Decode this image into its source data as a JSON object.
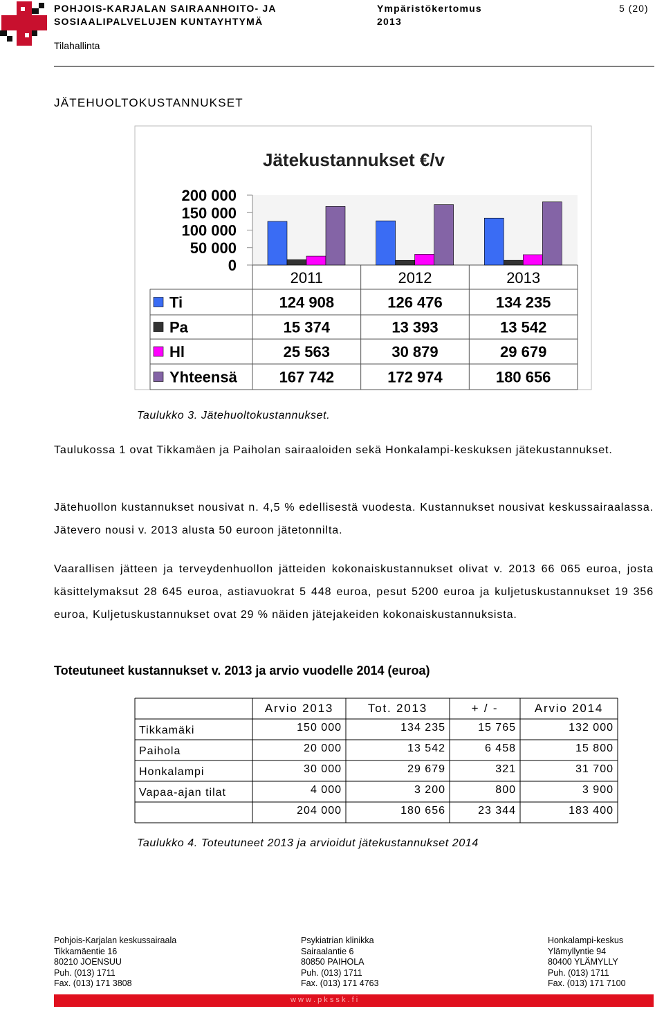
{
  "header": {
    "org": [
      "POHJOIS-KARJALAN SAIRAANHOITO- JA",
      "SOSIAALIPALVELUJEN KUNTAYHTYMÄ"
    ],
    "doc": [
      "Ympäristökertomus",
      "2013"
    ],
    "page": "5 (20)",
    "unit": "Tilahallinta"
  },
  "heading": "JÄTEHUOLTOKUSTANNUKSET",
  "chart_data": {
    "type": "bar",
    "title": "Jätekustannukset €/v",
    "categories": [
      "2011",
      "2012",
      "2013"
    ],
    "series": [
      {
        "name": "Ti",
        "color": "#3a6cf4",
        "values": [
          124908,
          126476,
          134235
        ],
        "value_labels": [
          "124 908",
          "126 476",
          "134 235"
        ]
      },
      {
        "name": "Pa",
        "color": "#333333",
        "values": [
          15374,
          13393,
          13542
        ],
        "value_labels": [
          "15 374",
          "13 393",
          "13 542"
        ]
      },
      {
        "name": "Hl",
        "color": "#ff00ff",
        "values": [
          25563,
          30879,
          29679
        ],
        "value_labels": [
          "25 563",
          "30 879",
          "29 679"
        ]
      },
      {
        "name": "Yhteensä",
        "color": "#8464a6",
        "values": [
          167742,
          172974,
          180656
        ],
        "value_labels": [
          "167 742",
          "172 974",
          "180 656"
        ]
      }
    ],
    "ylim": [
      0,
      200000
    ],
    "yticks": [
      {
        "value": 200000,
        "label": "200 000"
      },
      {
        "value": 150000,
        "label": "150 000"
      },
      {
        "value": 100000,
        "label": "100 000"
      },
      {
        "value": 50000,
        "label": "50 000"
      },
      0
    ],
    "grid": false
  },
  "caption1": "Taulukko 3. Jätehuoltokustannukset.",
  "paragraphs": [
    "Taulukossa 1 ovat Tikkamäen ja Paiholan sairaaloiden sekä Honkalampi-keskuksen jätekus­tannukset.",
    "Jätehuollon kustannukset nousivat n. 4,5 % edellisestä vuodesta. Kustannukset nousivat keskussairaalassa. Jätevero nousi v. 2013 alusta 50 euroon jätetonnilta.",
    "Vaarallisen jätteen ja terveydenhuollon jätteiden kokonaiskustannukset olivat v. 2013 66 065 euroa, josta käsittelymaksut 28 645 euroa, astiavuokrat 5 448 euroa, pesut 5200 euroa ja kuljetuskustannukset 19 356 euroa, Kuljetuskustannukset ovat 29 % näiden jätejakeiden ko­konaiskustannuksista."
  ],
  "subheading": "Toteutuneet kustannukset v. 2013 ja arvio vuodelle 2014 (euroa)",
  "table": {
    "columns": [
      "Arvio 2013",
      "Tot. 2013",
      "+ / -",
      "Arvio 2014"
    ],
    "rows": [
      [
        "Tikkamäki",
        "150 000",
        "134 235",
        "15 765",
        "132 000"
      ],
      [
        "Paihola",
        "20 000",
        "13 542",
        "6 458",
        "15 800"
      ],
      [
        "Honkalampi",
        "30 000",
        "29 679",
        "321",
        "31 700"
      ],
      [
        "Vapaa-ajan tilat",
        "4 000",
        "3 200",
        "800",
        "3 900"
      ]
    ],
    "totals": [
      "204 000",
      "180 656",
      "23 344",
      "183 400"
    ]
  },
  "caption2": "Taulukko 4. Toteutuneet 2013 ja arvioidut jätekustannukset 2014",
  "footer": {
    "columns": [
      [
        "Pohjois-Karjalan keskussairaala",
        "Tikkamäentie 16",
        "80210 JOENSUU",
        "Puh. (013) 1711",
        "Fax. (013) 171 3808"
      ],
      [
        "Psykiatrian klinikka",
        "Sairaalantie 6",
        "80850 PAIHOLA",
        "Puh. (013) 1711",
        "Fax. (013) 171 4763"
      ],
      [
        "Honkalampi-keskus",
        "Ylämyllyntie 94",
        "80400 YLÄMYLLY",
        "Puh. (013) 1711",
        "Fax. (013) 171 7100"
      ]
    ],
    "url": "w w w . p k s s k . f i"
  }
}
